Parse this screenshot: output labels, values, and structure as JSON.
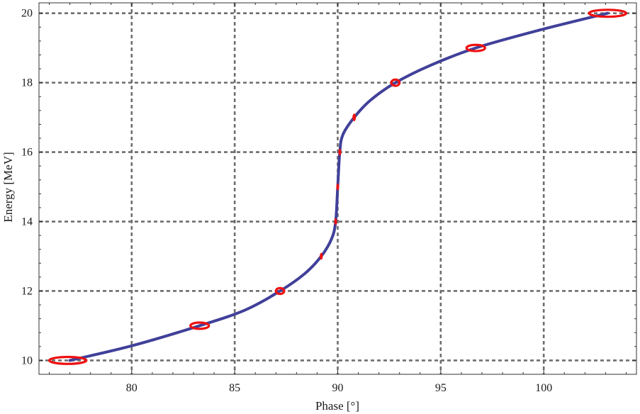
{
  "chart_data": {
    "type": "line",
    "xlabel": "Phase [°]",
    "ylabel": "Energy [MeV]",
    "xlim": [
      75.5,
      104.5
    ],
    "ylim": [
      9.6,
      20.3
    ],
    "x_ticks": [
      80,
      85,
      90,
      95,
      100
    ],
    "y_ticks": [
      10,
      12,
      14,
      16,
      18,
      20
    ],
    "x_tick_labels": [
      "80",
      "85",
      "90",
      "95",
      "100"
    ],
    "y_tick_labels": [
      "10",
      "12",
      "14",
      "16",
      "18",
      "20"
    ],
    "grid": true,
    "series": [
      {
        "style": "solid line",
        "color": "#40409a",
        "points": [
          {
            "x": 77.0,
            "y": 10.0
          },
          {
            "x": 80.0,
            "y": 10.42
          },
          {
            "x": 83.3,
            "y": 11.0
          },
          {
            "x": 85.5,
            "y": 11.45
          },
          {
            "x": 87.2,
            "y": 12.0
          },
          {
            "x": 88.4,
            "y": 12.5
          },
          {
            "x": 89.2,
            "y": 13.0
          },
          {
            "x": 89.7,
            "y": 13.5
          },
          {
            "x": 89.9,
            "y": 14.0
          },
          {
            "x": 90.0,
            "y": 15.0
          },
          {
            "x": 90.1,
            "y": 16.0
          },
          {
            "x": 90.25,
            "y": 16.5
          },
          {
            "x": 90.8,
            "y": 17.0
          },
          {
            "x": 91.6,
            "y": 17.5
          },
          {
            "x": 92.8,
            "y": 18.0
          },
          {
            "x": 94.5,
            "y": 18.5
          },
          {
            "x": 96.7,
            "y": 19.0
          },
          {
            "x": 99.7,
            "y": 19.5
          },
          {
            "x": 103.1,
            "y": 20.0
          }
        ]
      }
    ],
    "markers": {
      "color": "#ee1111",
      "shape": "ellipse",
      "points": [
        {
          "x": 76.9,
          "y": 10,
          "width_deg": 1.8,
          "height_mev": 0.2
        },
        {
          "x": 83.3,
          "y": 11,
          "width_deg": 0.9,
          "height_mev": 0.18
        },
        {
          "x": 87.2,
          "y": 12,
          "width_deg": 0.4,
          "height_mev": 0.17
        },
        {
          "x": 89.2,
          "y": 13,
          "width_deg": 0.15,
          "height_mev": 0.2
        },
        {
          "x": 89.9,
          "y": 14,
          "width_deg": 0.1,
          "height_mev": 0.2
        },
        {
          "x": 90.0,
          "y": 15,
          "width_deg": 0.08,
          "height_mev": 0.2
        },
        {
          "x": 90.1,
          "y": 16,
          "width_deg": 0.08,
          "height_mev": 0.2
        },
        {
          "x": 90.8,
          "y": 17,
          "width_deg": 0.17,
          "height_mev": 0.22
        },
        {
          "x": 92.8,
          "y": 18,
          "width_deg": 0.4,
          "height_mev": 0.18
        },
        {
          "x": 96.7,
          "y": 19,
          "width_deg": 0.9,
          "height_mev": 0.18
        },
        {
          "x": 103.1,
          "y": 20,
          "width_deg": 1.8,
          "height_mev": 0.2
        }
      ]
    }
  }
}
